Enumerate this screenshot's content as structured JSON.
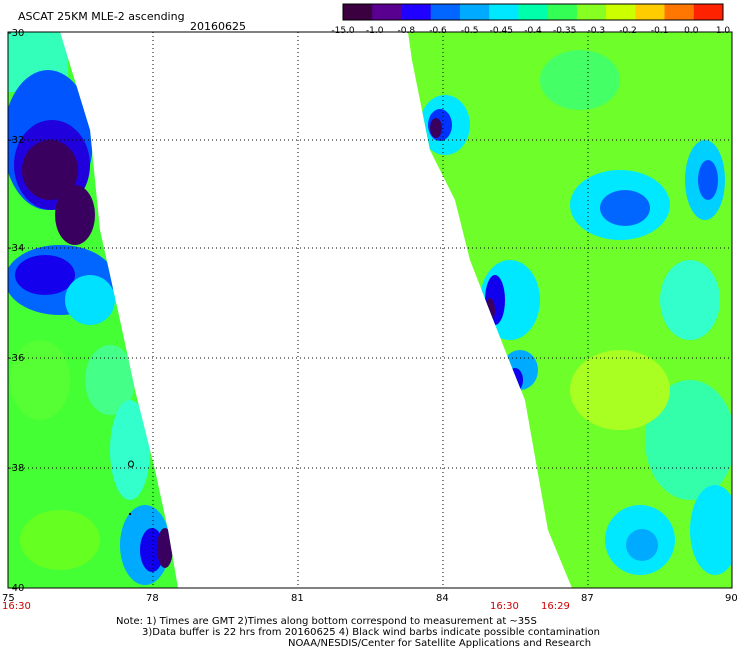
{
  "title": "ASCAT 25KM MLE-2 ascending",
  "date": "20160625",
  "colorbar": {
    "tick_labels": [
      "-15.0",
      "-1.0",
      "-0.8",
      "-0.6",
      "-0.5",
      "-0.45",
      "-0.4",
      "-0.35",
      "-0.3",
      "-0.2",
      "-0.1",
      "0.0",
      "1.0"
    ],
    "colors": [
      "#3a0040",
      "#5a0090",
      "#2000ff",
      "#0066ff",
      "#00aaff",
      "#00e8ff",
      "#00ffaa",
      "#33ff55",
      "#88ff22",
      "#ccff00",
      "#ffcc00",
      "#ff7700",
      "#ff2200"
    ]
  },
  "map": {
    "lon_labels": [
      "75",
      "78",
      "81",
      "84",
      "87",
      "90"
    ],
    "lat_labels": [
      "-30",
      "-32",
      "-34",
      "-36",
      "-38",
      "-40"
    ],
    "times": [
      "16:30",
      "16:30",
      "16:29"
    ],
    "time_color": "#cc0000",
    "grid": "dotted"
  },
  "notes": [
    "Note: 1) Times are GMT 2)Times along bottom correspond to measurement at ~35S",
    "3)Data buffer is 22 hrs from 20160625 4) Black wind barbs indicate possible contamination",
    "NOAA/NESDIS/Center for Satellite Applications and Research"
  ]
}
